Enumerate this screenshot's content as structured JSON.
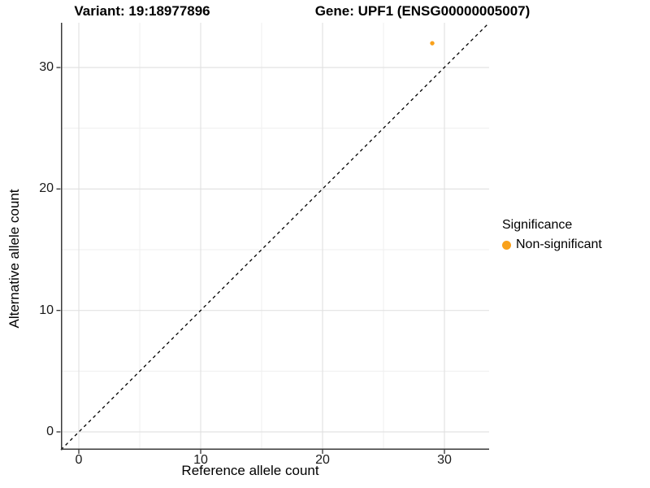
{
  "titles": {
    "variant": "Variant: 19:18977896",
    "gene": "Gene: UPF1 (ENSG00000005007)"
  },
  "axes": {
    "x_label": "Reference allele count",
    "y_label": "Alternative allele count"
  },
  "legend": {
    "title": "Significance",
    "items": [
      {
        "label": "Non-significant",
        "color": "#F9A11B"
      }
    ]
  },
  "colors": {
    "point_orange": "#F9A11B",
    "axis_line": "#3b3b3b",
    "tick_mark": "#333333",
    "grid_major": "#e2e2e2",
    "grid_minor": "#efefef",
    "identity_line": "#000000",
    "background": "#ffffff"
  },
  "chart_data": {
    "type": "scatter",
    "title": "Variant: 19:18977896 — Gene: UPF1 (ENSG00000005007)",
    "xlabel": "Reference allele count",
    "ylabel": "Alternative allele count",
    "xlim": [
      -1.5,
      33.7
    ],
    "ylim": [
      -1.5,
      33.7
    ],
    "x_ticks": [
      0,
      10,
      20,
      30
    ],
    "y_ticks": [
      0,
      10,
      20,
      30
    ],
    "x_minor_ticks": [
      5,
      15,
      25
    ],
    "y_minor_ticks": [
      5,
      15,
      25
    ],
    "grid": true,
    "identity_line": {
      "show": true,
      "style": "dashed",
      "equation": "y = x"
    },
    "series": [
      {
        "name": "Non-significant",
        "color": "#F9A11B",
        "points": [
          {
            "x": 29,
            "y": 32
          }
        ]
      }
    ],
    "legend_title": "Significance",
    "legend_position": "right"
  }
}
